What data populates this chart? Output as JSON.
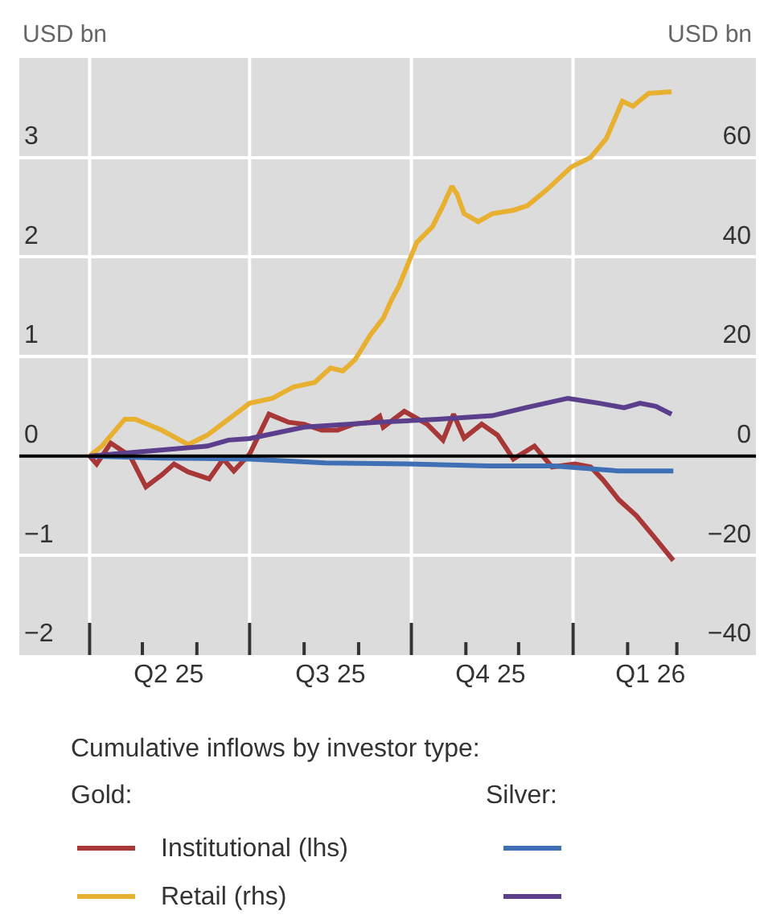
{
  "chart_data": {
    "type": "line",
    "ylabel": "USD bn",
    "y2label": "USD bn",
    "legend_title": "Cumulative inflows by investor type:",
    "annotations": [
      "Gold:",
      "Silver:"
    ],
    "xlim": [
      "2025-02-20",
      "2026-04-15"
    ],
    "xticks": [
      {
        "value": "2025-04-01",
        "label": null
      },
      {
        "value": "2025-05-01",
        "label": null
      },
      {
        "value": "2025-06-01",
        "label": null
      },
      {
        "value": "2025-07-01",
        "label": null
      },
      {
        "value": "2025-08-01",
        "label": null
      },
      {
        "value": "2025-09-01",
        "label": null
      },
      {
        "value": "2025-10-01",
        "label": null
      },
      {
        "value": "2025-11-01",
        "label": null
      },
      {
        "value": "2025-12-01",
        "label": null
      },
      {
        "value": "2026-01-01",
        "label": null
      },
      {
        "value": "2026-02-01",
        "label": null
      },
      {
        "value": "2026-03-01",
        "label": null
      },
      {
        "value": "2025-05-16",
        "label": "Q2 25"
      },
      {
        "value": "2025-08-16",
        "label": "Q3 25"
      },
      {
        "value": "2025-11-15",
        "label": "Q4 25"
      },
      {
        "value": "2026-02-14",
        "label": "Q1 26"
      }
    ],
    "ylim": [
      -2,
      4
    ],
    "yticks": [
      {
        "value": -2,
        "label": "−2"
      },
      {
        "value": -1,
        "label": "−1"
      },
      0,
      1,
      2,
      3
    ],
    "y2lim": [
      -40,
      80
    ],
    "y2ticks": [
      {
        "value": -40,
        "label": "−40"
      },
      {
        "value": -20,
        "label": "−20"
      },
      0,
      20,
      40,
      60
    ],
    "grid": true,
    "legend": "bottom",
    "marker": "none",
    "line_style": "solid",
    "ref_lines": [
      {
        "axis": "y",
        "value": 0,
        "color": "#000000"
      }
    ],
    "series": [
      {
        "name": "Institutional (lhs)",
        "color": "#a83838",
        "axis": "y",
        "x": [
          "2025-04-01",
          "2025-04-05",
          "2025-04-13",
          "2025-04-24",
          "2025-05-03",
          "2025-05-12",
          "2025-05-19",
          "2025-05-27",
          "2025-06-08",
          "2025-06-16",
          "2025-06-22",
          "2025-07-01",
          "2025-07-12",
          "2025-07-23",
          "2025-08-01",
          "2025-08-11",
          "2025-08-20",
          "2025-08-29",
          "2025-09-08",
          "2025-09-13",
          "2025-09-15",
          "2025-09-27",
          "2025-10-10",
          "2025-10-19",
          "2025-10-25",
          "2025-10-31",
          "2025-11-10",
          "2025-11-19",
          "2025-11-28",
          "2025-12-10",
          "2025-12-20",
          "2026-01-02",
          "2026-01-11",
          "2026-01-18",
          "2026-01-27",
          "2026-02-06",
          "2026-02-15",
          "2026-02-27"
        ],
        "values": [
          0,
          -0.08,
          0.13,
          0,
          -0.31,
          -0.19,
          -0.08,
          -0.16,
          -0.23,
          -0.03,
          -0.15,
          0.02,
          0.42,
          0.34,
          0.32,
          0.26,
          0.26,
          0.32,
          0.34,
          0.4,
          0.29,
          0.45,
          0.32,
          0.16,
          0.42,
          0.18,
          0.32,
          0.21,
          -0.03,
          0.1,
          -0.11,
          -0.08,
          -0.11,
          -0.24,
          -0.44,
          -0.6,
          -0.79,
          -1.05
        ]
      },
      {
        "name": "Retail (rhs)",
        "color": "#e8b030",
        "axis": "y2",
        "x": [
          "2025-04-01",
          "2025-04-08",
          "2025-04-21",
          "2025-04-27",
          "2025-05-12",
          "2025-05-27",
          "2025-06-07",
          "2025-06-19",
          "2025-07-01",
          "2025-07-14",
          "2025-07-26",
          "2025-08-07",
          "2025-08-16",
          "2025-08-23",
          "2025-08-30",
          "2025-09-08",
          "2025-09-15",
          "2025-09-20",
          "2025-09-24",
          "2025-10-04",
          "2025-10-13",
          "2025-10-19",
          "2025-10-24",
          "2025-10-27",
          "2025-10-31",
          "2025-11-08",
          "2025-11-16",
          "2025-11-28",
          "2025-12-06",
          "2025-12-17",
          "2025-12-31",
          "2026-01-11",
          "2026-01-20",
          "2026-01-29",
          "2026-02-04",
          "2026-02-13",
          "2026-02-26"
        ],
        "values": [
          0,
          2,
          7.4,
          7.4,
          5.2,
          2.3,
          4.2,
          7.4,
          10.6,
          11.6,
          13.9,
          14.8,
          17.7,
          17.1,
          19.4,
          24.5,
          27.7,
          31.6,
          34.2,
          42.9,
          46.1,
          50.3,
          54.2,
          52.6,
          48.7,
          47.1,
          48.7,
          49.4,
          50.3,
          53.5,
          58.1,
          60,
          63.9,
          71.3,
          70.3,
          72.9,
          73.2
        ]
      },
      {
        "color": "#3f6fb5",
        "axis": "y",
        "x": [
          "2025-04-01",
          "2025-05-12",
          "2025-07-01",
          "2025-08-13",
          "2025-09-29",
          "2025-11-14",
          "2025-12-21",
          "2026-01-27",
          "2026-02-27"
        ],
        "values": [
          0,
          -0.02,
          -0.03,
          -0.07,
          -0.08,
          -0.1,
          -0.1,
          -0.15,
          -0.15
        ]
      },
      {
        "color": "#5b3f8c",
        "axis": "y2",
        "x": [
          "2025-04-01",
          "2025-06-07",
          "2025-06-19",
          "2025-07-01",
          "2025-08-01",
          "2025-09-13",
          "2025-10-16",
          "2025-11-16",
          "2025-12-05",
          "2025-12-29",
          "2026-01-16",
          "2026-01-30",
          "2026-02-08",
          "2026-02-17",
          "2026-02-26"
        ],
        "values": [
          0,
          2,
          3.2,
          3.5,
          5.8,
          6.8,
          7.4,
          8.1,
          9.7,
          11.6,
          10.6,
          9.7,
          10.6,
          10,
          8.4
        ]
      }
    ]
  }
}
